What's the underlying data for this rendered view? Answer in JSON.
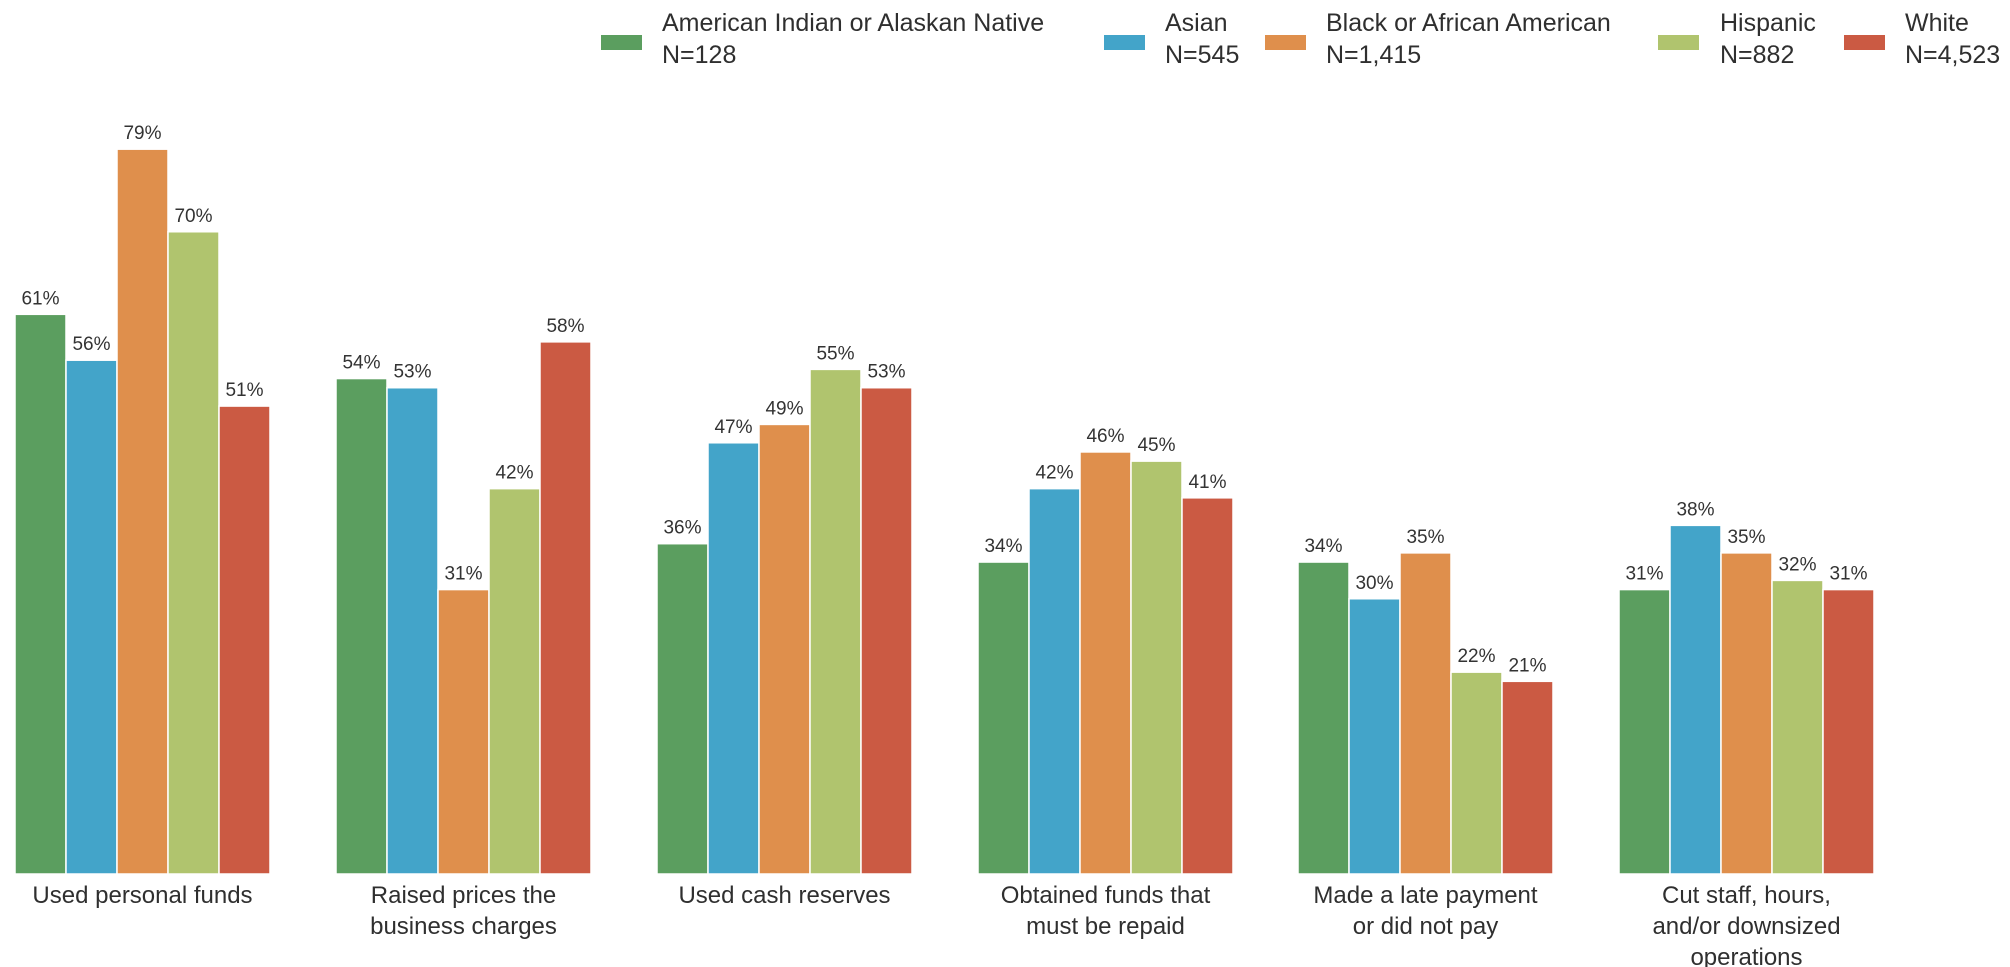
{
  "chart_data": {
    "type": "bar",
    "title": "",
    "xlabel": "",
    "ylabel": "",
    "ylim": [
      0,
      80
    ],
    "grid": false,
    "legend_position": "top-right",
    "value_suffix": "%",
    "categories": [
      [
        "Used personal funds"
      ],
      [
        "Raised prices the",
        "business charges"
      ],
      [
        "Used cash reserves"
      ],
      [
        "Obtained funds that",
        "must be repaid"
      ],
      [
        "Made a late payment",
        "or did not pay"
      ],
      [
        "Cut staff, hours,",
        "and/or downsized",
        "operations"
      ]
    ],
    "series": [
      {
        "name": "American Indian or Alaskan Native",
        "n_label": "N=128",
        "color": "#5b9e5f",
        "values": [
          61,
          54,
          36,
          34,
          34,
          31
        ]
      },
      {
        "name": "Asian",
        "n_label": "N=545",
        "color": "#43a4c9",
        "values": [
          56,
          53,
          47,
          42,
          30,
          38
        ]
      },
      {
        "name": "Black or African American",
        "n_label": "N=1,415",
        "color": "#df8f4c",
        "values": [
          79,
          31,
          49,
          46,
          35,
          35
        ]
      },
      {
        "name": "Hispanic",
        "n_label": "N=882",
        "color": "#b0c46e",
        "values": [
          70,
          42,
          55,
          45,
          22,
          32
        ]
      },
      {
        "name": "White",
        "n_label": "N=4,523",
        "color": "#cb5a43",
        "values": [
          51,
          58,
          53,
          41,
          21,
          31
        ]
      }
    ]
  }
}
